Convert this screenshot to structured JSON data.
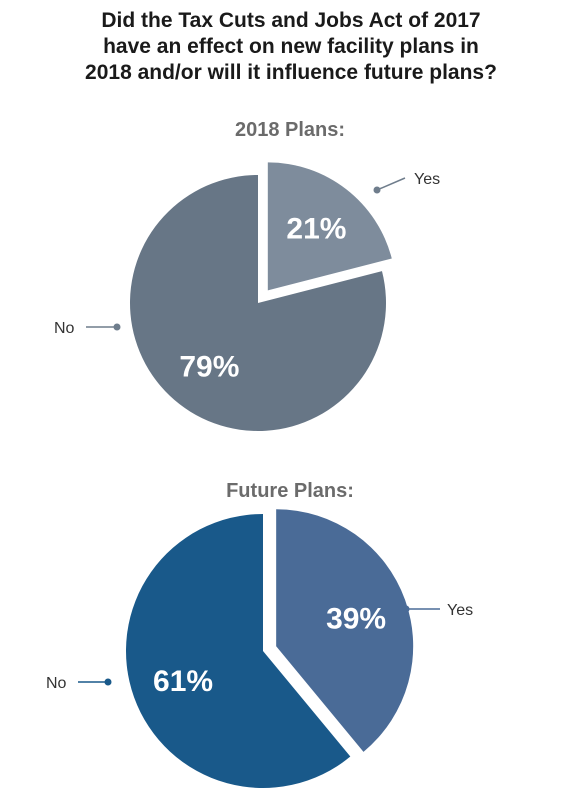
{
  "header": {
    "title_lines": [
      "Did the Tax Cuts and Jobs Act of 2017",
      "have an effect on new facility plans in",
      "2018 and/or will it influence future plans?"
    ]
  },
  "chart_data": [
    {
      "type": "pie",
      "title": "2018 Plans:",
      "slices": [
        {
          "label": "Yes",
          "value": 21,
          "display": "21%",
          "color": "#7e8c9c",
          "exploded": true
        },
        {
          "label": "No",
          "value": 79,
          "display": "79%",
          "color": "#677686",
          "exploded": false
        }
      ]
    },
    {
      "type": "pie",
      "title": "Future Plans:",
      "slices": [
        {
          "label": "Yes",
          "value": 39,
          "display": "39%",
          "color": "#4a6b97",
          "exploded": true
        },
        {
          "label": "No",
          "value": 61,
          "display": "61%",
          "color": "#19598a",
          "exploded": false
        }
      ]
    }
  ]
}
